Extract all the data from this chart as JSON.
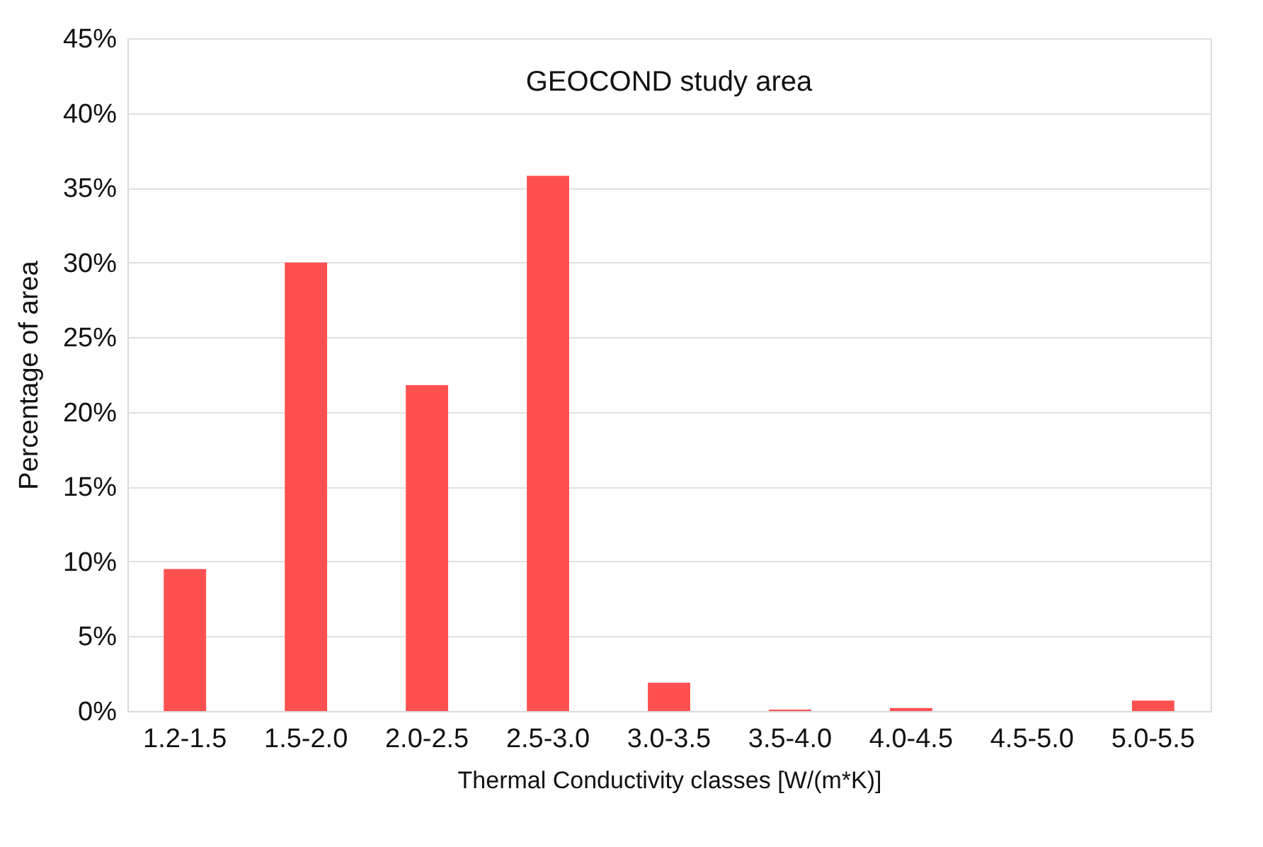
{
  "chart_data": {
    "type": "bar",
    "title": "GEOCOND study area",
    "xlabel": "Thermal Conductivity classes [W/(m*K)]",
    "ylabel": "Percentage of area",
    "categories": [
      "1.2-1.5",
      "1.5-2.0",
      "2.0-2.5",
      "2.5-3.0",
      "3.0-3.5",
      "3.5-4.0",
      "4.0-4.5",
      "4.5-5.0",
      "5.0-5.5"
    ],
    "values": [
      9.5,
      30,
      21.8,
      35.8,
      1.9,
      0.1,
      0.2,
      0,
      0.7
    ],
    "color": "#ff5050",
    "ylim": [
      0,
      45
    ],
    "yticks": [
      {
        "value": 0,
        "label": "0%"
      },
      {
        "value": 5,
        "label": "5%"
      },
      {
        "value": 10,
        "label": "10%"
      },
      {
        "value": 15,
        "label": "15%"
      },
      {
        "value": 20,
        "label": "20%"
      },
      {
        "value": 25,
        "label": "25%"
      },
      {
        "value": 30,
        "label": "30%"
      },
      {
        "value": 35,
        "label": "35%"
      },
      {
        "value": 40,
        "label": "40%"
      },
      {
        "value": 45,
        "label": "45%"
      }
    ],
    "grid": "y"
  }
}
